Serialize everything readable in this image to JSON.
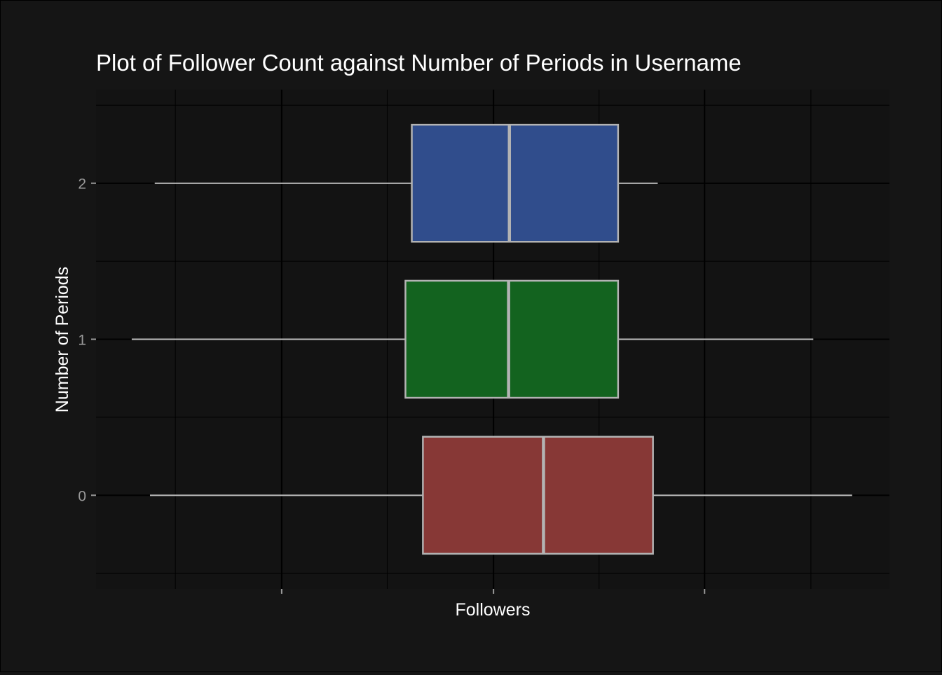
{
  "chart_data": {
    "type": "boxplot",
    "orientation": "horizontal",
    "title": "Plot of Follower Count against Number of Periods in Username",
    "xlabel": "Followers",
    "ylabel": "Number of Periods",
    "xlim": [
      0,
      100
    ],
    "x_tick_labels_shown": false,
    "grid": true,
    "legend": "none",
    "categories": [
      "0",
      "1",
      "2"
    ],
    "series": [
      {
        "category": "0",
        "whisker_low": 6.8,
        "q1": 41.2,
        "median": 56.4,
        "q3": 70.2,
        "whisker_high": 95.3,
        "color": "#8b3a38"
      },
      {
        "category": "1",
        "whisker_low": 4.5,
        "q1": 39.0,
        "median": 52.0,
        "q3": 65.8,
        "whisker_high": 90.4,
        "color": "#146620"
      },
      {
        "category": "2",
        "whisker_low": 7.4,
        "q1": 39.8,
        "median": 52.1,
        "q3": 65.8,
        "whisker_high": 70.8,
        "color": "#324f91"
      }
    ],
    "colors": {
      "background": "#151515",
      "panel": "#131313",
      "grid": "#000000",
      "box_outline": "#b3b3b3",
      "whisker": "#bfbfbf",
      "text": "#ffffff",
      "tick_text": "#9a9a9a"
    }
  }
}
